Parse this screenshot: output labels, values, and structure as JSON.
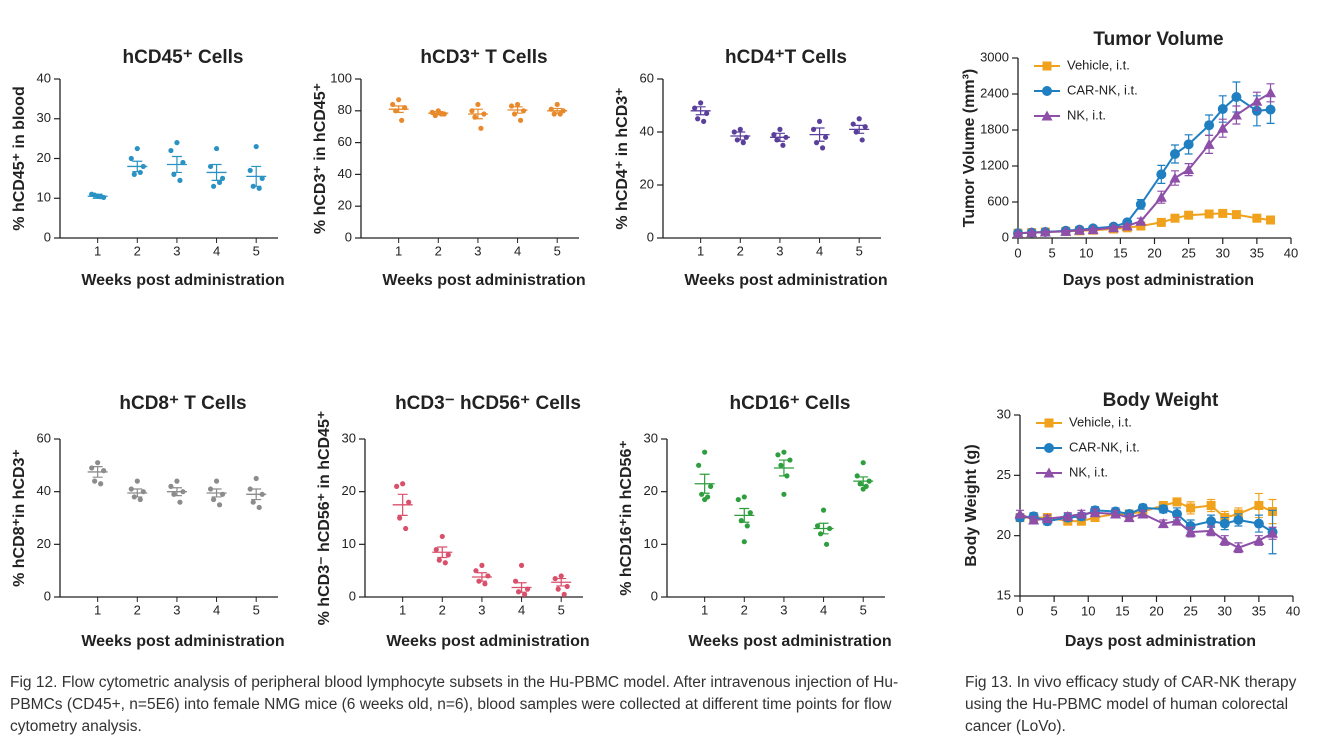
{
  "chart_data": [
    {
      "type": "dot-plot",
      "title": "hCD45⁺ Cells",
      "x_label": "Weeks post  administration",
      "y_label": "% hCD45⁺ in blood",
      "color": "#2b93c4",
      "categories": [
        "1",
        "2",
        "3",
        "4",
        "5"
      ],
      "points": [
        [
          10.5,
          11,
          10.2,
          10.8,
          10.4
        ],
        [
          22.5,
          20,
          18,
          16,
          16.5
        ],
        [
          24,
          22,
          19,
          16,
          14.5
        ],
        [
          22.5,
          18,
          15,
          13,
          14
        ],
        [
          23,
          17,
          15,
          13,
          12.5
        ]
      ],
      "mean": [
        10.5,
        18,
        18.5,
        16.5,
        15.5
      ],
      "error": [
        0.5,
        1.3,
        2,
        2,
        2.5
      ],
      "ylim": [
        0,
        40
      ],
      "yticks": [
        0,
        10,
        20,
        30,
        40
      ]
    },
    {
      "type": "dot-plot",
      "title": "hCD3⁺ T Cells",
      "x_label": "Weeks post  administration",
      "y_label": "% hCD3⁺ in hCD45⁺",
      "color": "#e8892b",
      "categories": [
        "1",
        "2",
        "3",
        "4",
        "5"
      ],
      "points": [
        [
          87,
          84,
          82,
          80,
          74
        ],
        [
          80,
          79,
          78,
          77,
          78
        ],
        [
          84,
          80,
          78,
          76,
          69
        ],
        [
          84,
          83,
          80,
          78,
          74
        ],
        [
          84,
          81,
          80,
          78,
          78
        ]
      ],
      "mean": [
        81,
        78.5,
        78,
        80.5,
        80
      ],
      "error": [
        2,
        1,
        3,
        2,
        1.5
      ],
      "ylim": [
        0,
        100
      ],
      "yticks": [
        0,
        20,
        40,
        60,
        80,
        100
      ]
    },
    {
      "type": "dot-plot",
      "title": "hCD4⁺T Cells",
      "x_label": "Weeks post  administration",
      "y_label": "% hCD4⁺ in hCD3⁺",
      "color": "#5b3f9c",
      "categories": [
        "1",
        "2",
        "3",
        "4",
        "5"
      ],
      "points": [
        [
          51,
          49,
          47,
          45,
          44
        ],
        [
          41,
          40,
          38,
          37,
          36
        ],
        [
          41,
          39,
          38,
          37,
          35
        ],
        [
          44,
          41,
          38,
          36,
          34
        ],
        [
          45,
          43,
          42,
          40,
          37
        ]
      ],
      "mean": [
        48,
        38.5,
        38,
        39,
        41
      ],
      "error": [
        1.5,
        1.5,
        1.5,
        2.5,
        1.5
      ],
      "ylim": [
        0,
        60
      ],
      "yticks": [
        0,
        20,
        40,
        60
      ]
    },
    {
      "type": "dot-plot",
      "title": "hCD8⁺ T Cells",
      "x_label": "Weeks post  administration",
      "y_label": "% hCD8⁺in hCD3⁺",
      "color": "#8c8c8c",
      "categories": [
        "1",
        "2",
        "3",
        "4",
        "5"
      ],
      "points": [
        [
          51,
          49,
          48,
          44,
          43
        ],
        [
          44,
          41,
          40,
          38,
          37
        ],
        [
          44,
          42,
          40,
          39,
          36
        ],
        [
          44,
          41,
          39,
          37,
          35
        ],
        [
          45,
          41,
          39,
          36,
          34
        ]
      ],
      "mean": [
        47.5,
        39.5,
        40,
        39.5,
        39
      ],
      "error": [
        2,
        1.5,
        1.5,
        1.5,
        2
      ],
      "ylim": [
        0,
        60
      ],
      "yticks": [
        0,
        20,
        40,
        60
      ]
    },
    {
      "type": "dot-plot",
      "title": "hCD3⁻ hCD56⁺ Cells",
      "x_label": "Weeks post  administration",
      "y_label": "% hCD3⁻ hCD56⁺ in hCD45⁺",
      "color": "#d9506b",
      "categories": [
        "1",
        "2",
        "3",
        "4",
        "5"
      ],
      "points": [
        [
          21.5,
          21,
          18,
          15,
          13
        ],
        [
          11.5,
          9,
          8,
          7,
          6.5
        ],
        [
          6,
          5,
          4,
          3,
          2.5
        ],
        [
          6,
          3,
          1.5,
          1,
          0.5
        ],
        [
          4,
          3.5,
          2,
          1.5,
          0.5
        ]
      ],
      "mean": [
        17.5,
        8.5,
        3.8,
        1.8,
        2.8
      ],
      "error": [
        2,
        1,
        0.8,
        0.9,
        0.7
      ],
      "ylim": [
        0,
        30
      ],
      "yticks": [
        0,
        10,
        20,
        30
      ]
    },
    {
      "type": "dot-plot",
      "title": "hCD16⁺  Cells",
      "x_label": "Weeks post  administration",
      "y_label": "% hCD16⁺in hCD56⁺",
      "color": "#2e9e3e",
      "categories": [
        "1",
        "2",
        "3",
        "4",
        "5"
      ],
      "points": [
        [
          27.5,
          25,
          21,
          19.5,
          19,
          18.5
        ],
        [
          19,
          18.5,
          16,
          14.5,
          13.5,
          10.5
        ],
        [
          27.5,
          27,
          26,
          25,
          23,
          19.5
        ],
        [
          16.5,
          13.5,
          13,
          12,
          10
        ],
        [
          25.5,
          23,
          22,
          21.5,
          21,
          20.5
        ]
      ],
      "mean": [
        21.5,
        15.5,
        24.5,
        13,
        22
      ],
      "error": [
        1.8,
        1.3,
        1.5,
        1,
        0.8
      ],
      "ylim": [
        0,
        30
      ],
      "yticks": [
        0,
        10,
        20,
        30
      ]
    },
    {
      "type": "line",
      "title": "Tumor Volume",
      "x_label": "Days post administration",
      "y_label": "Tumor Volume (mm³)",
      "legend": "upper-left",
      "x": [
        0,
        2,
        4,
        7,
        9,
        11,
        14,
        16,
        18,
        21,
        23,
        25,
        28,
        30,
        32,
        35,
        37
      ],
      "series": [
        {
          "name": "Vehicle, i.t.",
          "color": "#f0a21c",
          "marker": "square",
          "values": [
            80,
            90,
            100,
            110,
            120,
            130,
            150,
            170,
            200,
            260,
            330,
            380,
            400,
            410,
            390,
            330,
            300
          ],
          "errors": [
            10,
            10,
            10,
            15,
            15,
            20,
            20,
            20,
            25,
            30,
            40,
            40,
            50,
            50,
            60,
            60,
            60
          ]
        },
        {
          "name": "CAR-NK, i.t.",
          "color": "#1f7fc1",
          "marker": "circle",
          "values": [
            80,
            90,
            100,
            120,
            140,
            160,
            190,
            260,
            560,
            1060,
            1400,
            1560,
            1880,
            2150,
            2350,
            2120,
            2140
          ],
          "errors": [
            10,
            10,
            10,
            15,
            15,
            20,
            20,
            30,
            80,
            150,
            150,
            160,
            170,
            220,
            250,
            250,
            230
          ]
        },
        {
          "name": "NK, i.t.",
          "color": "#8e4fa8",
          "marker": "triangle",
          "values": [
            80,
            90,
            100,
            110,
            130,
            140,
            170,
            200,
            280,
            680,
            1000,
            1140,
            1560,
            1830,
            2050,
            2280,
            2420
          ],
          "errors": [
            10,
            10,
            10,
            15,
            15,
            20,
            20,
            30,
            50,
            100,
            120,
            100,
            150,
            150,
            150,
            150,
            150
          ]
        }
      ],
      "xlim": [
        0,
        40
      ],
      "xticks": [
        0,
        5,
        10,
        15,
        20,
        25,
        30,
        35,
        40
      ],
      "ylim": [
        0,
        3000
      ],
      "yticks": [
        0,
        600,
        1200,
        1800,
        2400,
        3000
      ]
    },
    {
      "type": "line",
      "title": "Body Weight",
      "x_label": "Days post administration",
      "y_label": "Body Weight (g)",
      "legend": "upper-left",
      "x": [
        0,
        2,
        4,
        7,
        9,
        11,
        14,
        16,
        18,
        21,
        23,
        25,
        28,
        30,
        32,
        35,
        37
      ],
      "series": [
        {
          "name": "Vehicle, i.t.",
          "color": "#f0a21c",
          "marker": "square",
          "values": [
            21.5,
            21.5,
            21.5,
            21.2,
            21.2,
            21.5,
            21.8,
            21.8,
            22,
            22.5,
            22.8,
            22.3,
            22.5,
            21.5,
            21.8,
            22.5,
            22
          ],
          "errors": [
            0.3,
            0.3,
            0.3,
            0.3,
            0.3,
            0.3,
            0.3,
            0.3,
            0.3,
            0.3,
            0.3,
            0.5,
            0.5,
            0.5,
            0.5,
            1,
            1
          ]
        },
        {
          "name": "CAR-NK, i.t.",
          "color": "#1f7fc1",
          "marker": "circle",
          "values": [
            21.5,
            21.6,
            21.2,
            21.5,
            21.6,
            22.1,
            22,
            21.8,
            22.3,
            22.2,
            21.8,
            20.8,
            21.2,
            21,
            21.3,
            21,
            20.3
          ],
          "errors": [
            0.3,
            0.3,
            0.3,
            0.3,
            0.3,
            0.3,
            0.3,
            0.3,
            0.3,
            0.3,
            0.5,
            0.5,
            0.5,
            0.5,
            0.5,
            0.7,
            1.8
          ]
        },
        {
          "name": "NK, i.t.",
          "color": "#8e4fa8",
          "marker": "triangle",
          "values": [
            21.8,
            21.3,
            21.4,
            21.6,
            21.8,
            21.9,
            21.8,
            21.5,
            21.8,
            21,
            21.2,
            20.3,
            20.4,
            19.6,
            19,
            19.6,
            20.2
          ],
          "errors": [
            0.3,
            0.3,
            0.3,
            0.3,
            0.3,
            0.3,
            0.3,
            0.3,
            0.3,
            0.3,
            0.3,
            0.4,
            0.4,
            0.4,
            0.4,
            0.4,
            0.5
          ]
        }
      ],
      "xlim": [
        0,
        40
      ],
      "xticks": [
        0,
        5,
        10,
        15,
        20,
        25,
        30,
        35,
        40
      ],
      "ylim": [
        15,
        30
      ],
      "yticks": [
        15,
        20,
        25,
        30
      ]
    }
  ],
  "captions": {
    "fig12": "Fig 12. Flow cytometric analysis of peripheral blood lymphocyte subsets in the Hu-PBMC model. After intravenous injection of Hu-PBMCs (CD45+, n=5E6) into female NMG mice (6 weeks old, n=6), blood samples were collected at different time points for flow cytometry analysis.",
    "fig13": "Fig 13. In vivo efficacy study of CAR-NK therapy using the Hu-PBMC model of human colorectal cancer (LoVo)."
  }
}
